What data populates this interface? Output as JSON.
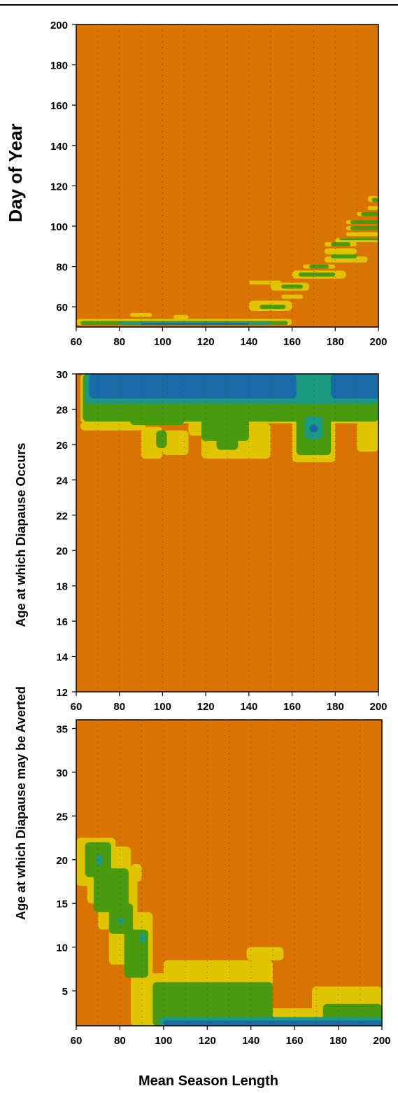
{
  "colors": {
    "orange": "#D97400",
    "yellow": "#E0C400",
    "green": "#4A9A10",
    "teal": "#1A9A80",
    "blue": "#1A6AA8",
    "grid": "#333333"
  },
  "xlabel": "Mean Season Length",
  "chart_data": [
    {
      "type": "heatmap",
      "title": "",
      "xlabel": "",
      "ylabel": "Day of Year",
      "xlim": [
        60,
        200
      ],
      "ylim": [
        50,
        200
      ],
      "xticks": [
        60,
        80,
        100,
        120,
        140,
        160,
        180,
        200
      ],
      "yticks": [
        60,
        80,
        100,
        120,
        140,
        160,
        180,
        200
      ],
      "grid": true,
      "background": "orange",
      "regions": [
        {
          "color": "yellow",
          "rects": [
            [
              60,
              51,
              160,
              54
            ],
            [
              85,
              55,
              95,
              57
            ],
            [
              105,
              54,
              112,
              56
            ],
            [
              140,
              71,
              155,
              73
            ],
            [
              140,
              58,
              160,
              63
            ],
            [
              155,
              64,
              165,
              66
            ],
            [
              150,
              68,
              168,
              72
            ],
            [
              160,
              74,
              185,
              78
            ],
            [
              165,
              79,
              180,
              81
            ],
            [
              175,
              82,
              195,
              85
            ],
            [
              175,
              86,
              190,
              89
            ],
            [
              175,
              90,
              190,
              92
            ],
            [
              180,
              92,
              200,
              94
            ],
            [
              185,
              95,
              200,
              97
            ],
            [
              185,
              98,
              200,
              100
            ],
            [
              185,
              101,
              200,
              103
            ],
            [
              190,
              105,
              200,
              107
            ],
            [
              195,
              108,
              200,
              110
            ],
            [
              195,
              112,
              200,
              115
            ]
          ]
        },
        {
          "color": "green",
          "rects": [
            [
              62,
              51,
              158,
              53
            ],
            [
              145,
              59,
              157,
              61
            ],
            [
              155,
              69,
              165,
              71
            ],
            [
              163,
              75,
              180,
              77
            ],
            [
              168,
              79,
              177,
              81
            ],
            [
              178,
              84,
              190,
              86
            ],
            [
              178,
              90,
              187,
              92
            ],
            [
              182,
              93,
              200,
              94
            ],
            [
              187,
              98,
              200,
              100
            ],
            [
              187,
              101,
              200,
              103
            ],
            [
              192,
              105,
              200,
              107
            ],
            [
              197,
              112,
              200,
              114
            ]
          ]
        },
        {
          "color": "teal",
          "rects": [
            [
              80,
              51,
              150,
              52.5
            ]
          ]
        },
        {
          "color": "blue",
          "rects": [
            [
              90,
              51,
              140,
              52
            ]
          ]
        }
      ]
    },
    {
      "type": "heatmap",
      "title": "",
      "xlabel": "",
      "ylabel": "Age at which Diapause Occurs",
      "xlim": [
        60,
        200
      ],
      "ylim": [
        12,
        30
      ],
      "xticks": [
        60,
        80,
        100,
        120,
        140,
        160,
        180,
        200
      ],
      "yticks": [
        12,
        14,
        16,
        18,
        20,
        22,
        24,
        26,
        28,
        30
      ],
      "grid": true,
      "background": "orange",
      "regions": [
        {
          "color": "yellow",
          "rects": [
            [
              62,
              27.2,
              200,
              30
            ],
            [
              62,
              26.8,
              92,
              27.3
            ],
            [
              90,
              25.2,
              100,
              27
            ],
            [
              100,
              25.4,
              112,
              26.8
            ],
            [
              112,
              26.5,
              125,
              27.5
            ],
            [
              118,
              25.2,
              150,
              27.2
            ],
            [
              160,
              25,
              180,
              28
            ],
            [
              190,
              25.6,
              200,
              27.6
            ]
          ]
        },
        {
          "color": "green",
          "rects": [
            [
              63,
              27.3,
              200,
              30
            ],
            [
              85,
              27.1,
              110,
              27.6
            ],
            [
              97,
              25.8,
              102,
              26.8
            ],
            [
              118,
              26.2,
              140,
              27.8
            ],
            [
              125,
              25.7,
              135,
              26.4
            ],
            [
              143,
              27.3,
              158,
              27.9
            ],
            [
              162,
              25.4,
              178,
              28.2
            ],
            [
              165,
              28.2,
              175,
              30
            ]
          ]
        },
        {
          "color": "teal",
          "rects": [
            [
              64,
              28.3,
              200,
              30
            ],
            [
              166,
              26.3,
              174,
              27.6
            ],
            [
              163,
              28.4,
              177,
              30
            ]
          ]
        },
        {
          "color": "blue",
          "rects": [
            [
              66,
              28.6,
              162,
              30
            ],
            [
              178,
              28.6,
              200,
              30
            ],
            [
              168,
              26.7,
              172,
              27.1
            ]
          ]
        }
      ]
    },
    {
      "type": "heatmap",
      "title": "",
      "xlabel": "Mean Season Length",
      "ylabel": "Age at which Diapause may be Averted",
      "xlim": [
        60,
        200
      ],
      "ylim": [
        1,
        36
      ],
      "xticks": [
        60,
        80,
        100,
        120,
        140,
        160,
        180,
        200
      ],
      "yticks": [
        5,
        10,
        15,
        20,
        25,
        30,
        35
      ],
      "grid": true,
      "background": "orange",
      "regions": [
        {
          "color": "yellow",
          "rects": [
            [
              60,
              17,
              78,
              22.5
            ],
            [
              65,
              15,
              85,
              21.5
            ],
            [
              70,
              12,
              88,
              18
            ],
            [
              75,
              8,
              95,
              14
            ],
            [
              85,
              1,
              95,
              12
            ],
            [
              90,
              1,
              108,
              7
            ],
            [
              100,
              1,
              150,
              8.5
            ],
            [
              108,
              1,
              170,
              3
            ],
            [
              138,
              8.5,
              155,
              10
            ],
            [
              168,
              1,
              200,
              5.5
            ],
            [
              85,
              17.5,
              90,
              19.5
            ]
          ]
        },
        {
          "color": "green",
          "rects": [
            [
              64,
              18,
              76,
              22
            ],
            [
              68,
              14,
              84,
              19
            ],
            [
              75,
              11.5,
              86,
              15
            ],
            [
              82,
              6.5,
              93,
              12
            ],
            [
              95,
              1,
              150,
              6
            ],
            [
              100,
              3,
              128,
              5.5
            ],
            [
              110,
              1,
              145,
              3.5
            ],
            [
              173,
              1,
              200,
              3.5
            ]
          ]
        },
        {
          "color": "teal",
          "rects": [
            [
              69,
              19.3,
              72,
              20.6
            ],
            [
              79,
              12.6,
              82,
              13.4
            ],
            [
              89,
              10.5,
              92,
              11.5
            ],
            [
              98,
              1,
              200,
              2
            ]
          ]
        },
        {
          "color": "blue",
          "rects": [
            [
              100,
              1,
              200,
              1.6
            ]
          ]
        }
      ]
    }
  ]
}
